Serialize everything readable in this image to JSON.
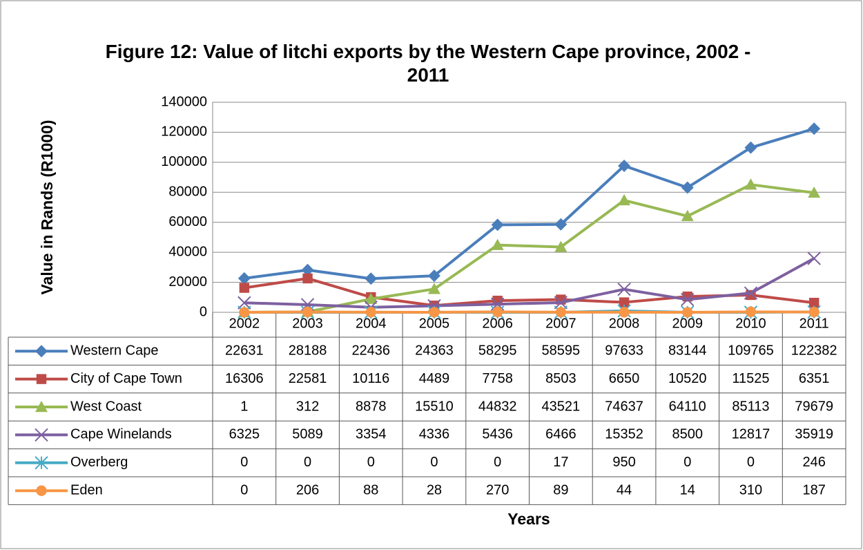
{
  "chart_data": {
    "type": "line",
    "title": "Figure 12: Value of litchi exports by the Western Cape province, 2002 - 2011",
    "y_label": "Value in Rands (R1000)",
    "x_label": "Years",
    "categories": [
      "2002",
      "2003",
      "2004",
      "2005",
      "2006",
      "2007",
      "2008",
      "2009",
      "2010",
      "2011"
    ],
    "ylim": [
      0,
      140000
    ],
    "yticks": [
      0,
      20000,
      40000,
      60000,
      80000,
      100000,
      120000,
      140000
    ],
    "grid": true,
    "series": [
      {
        "name": "Western Cape",
        "color": "#4a7ebb",
        "marker": "diamond",
        "values": [
          22631,
          28188,
          22436,
          24363,
          58295,
          58595,
          97633,
          83144,
          109765,
          122382
        ]
      },
      {
        "name": "City of Cape Town",
        "color": "#be4b48",
        "marker": "square",
        "values": [
          16306,
          22581,
          10116,
          4489,
          7758,
          8503,
          6650,
          10520,
          11525,
          6351
        ]
      },
      {
        "name": "West Coast",
        "color": "#98b954",
        "marker": "triangle",
        "values": [
          1,
          312,
          8878,
          15510,
          44832,
          43521,
          74637,
          64110,
          85113,
          79679
        ]
      },
      {
        "name": "Cape Winelands",
        "color": "#7d60a0",
        "marker": "x",
        "values": [
          6325,
          5089,
          3354,
          4336,
          5436,
          6466,
          15352,
          8500,
          12817,
          35919
        ]
      },
      {
        "name": "Overberg",
        "color": "#46aac5",
        "marker": "star",
        "values": [
          0,
          0,
          0,
          0,
          0,
          17,
          950,
          0,
          0,
          246
        ]
      },
      {
        "name": "Eden",
        "color": "#f79646",
        "marker": "circle",
        "values": [
          0,
          206,
          88,
          28,
          270,
          89,
          44,
          14,
          310,
          187
        ]
      }
    ]
  }
}
